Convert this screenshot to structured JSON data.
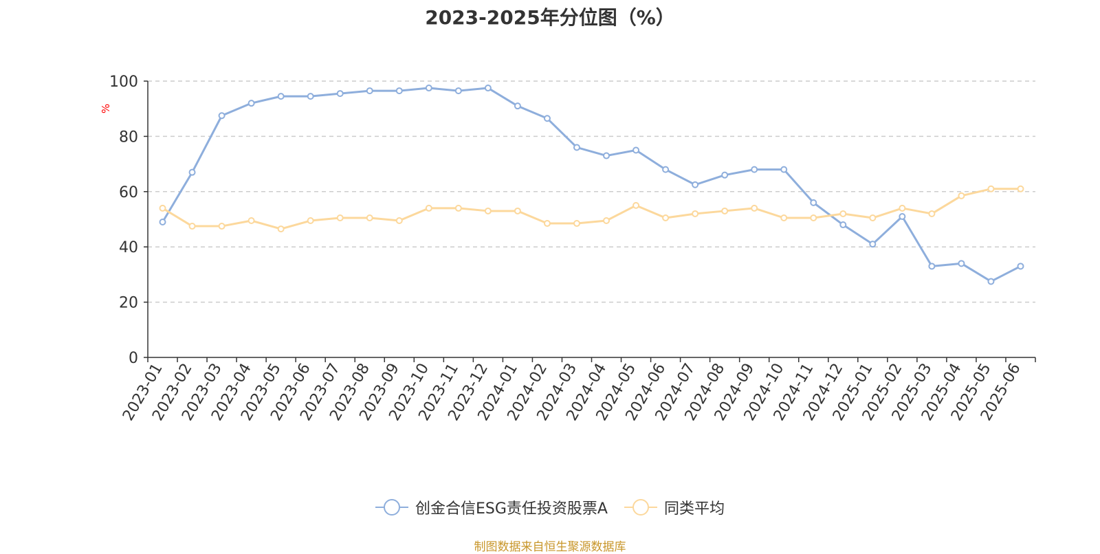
{
  "title": "2023-2025年分位图（%）",
  "footer": "制图数据来自恒生聚源数据库",
  "colors": {
    "series1": "#8eaedc",
    "series2": "#fcd89c",
    "grid": "#cccccc",
    "axis": "#333333",
    "ylabel": "#ff0000",
    "footer": "#c8962a"
  },
  "chart_data": {
    "type": "line",
    "title": "2023-2025年分位图（%）",
    "xlabel": "",
    "ylabel": "%",
    "ylim": [
      0,
      100
    ],
    "yticks": [
      0,
      20,
      40,
      60,
      80,
      100
    ],
    "grid": true,
    "legend_position": "bottom",
    "categories": [
      "2023-01",
      "2023-02",
      "2023-03",
      "2023-04",
      "2023-05",
      "2023-06",
      "2023-07",
      "2023-08",
      "2023-09",
      "2023-10",
      "2023-11",
      "2023-12",
      "2024-01",
      "2024-02",
      "2024-03",
      "2024-04",
      "2024-05",
      "2024-06",
      "2024-07",
      "2024-08",
      "2024-09",
      "2024-10",
      "2024-11",
      "2024-12",
      "2025-01",
      "2025-02",
      "2025-03",
      "2025-04",
      "2025-05",
      "2025-06"
    ],
    "series": [
      {
        "name": "创金合信ESG责任投资股票A",
        "color": "#8eaedc",
        "values": [
          49,
          67,
          87.5,
          92,
          94.5,
          94.5,
          95.5,
          96.5,
          96.5,
          97.5,
          96.5,
          97.5,
          91,
          86.5,
          76,
          73,
          75,
          68,
          62.5,
          66,
          68,
          68,
          56,
          48,
          41,
          51,
          33,
          34,
          27.5,
          33
        ]
      },
      {
        "name": "同类平均",
        "color": "#fcd89c",
        "values": [
          54,
          47.5,
          47.5,
          49.5,
          46.5,
          49.5,
          50.5,
          50.5,
          49.5,
          54,
          54,
          53,
          53,
          48.5,
          48.5,
          49.5,
          55,
          50.5,
          52,
          53,
          54,
          50.5,
          50.5,
          52,
          50.5,
          54,
          52,
          58.5,
          61,
          61
        ]
      }
    ]
  }
}
